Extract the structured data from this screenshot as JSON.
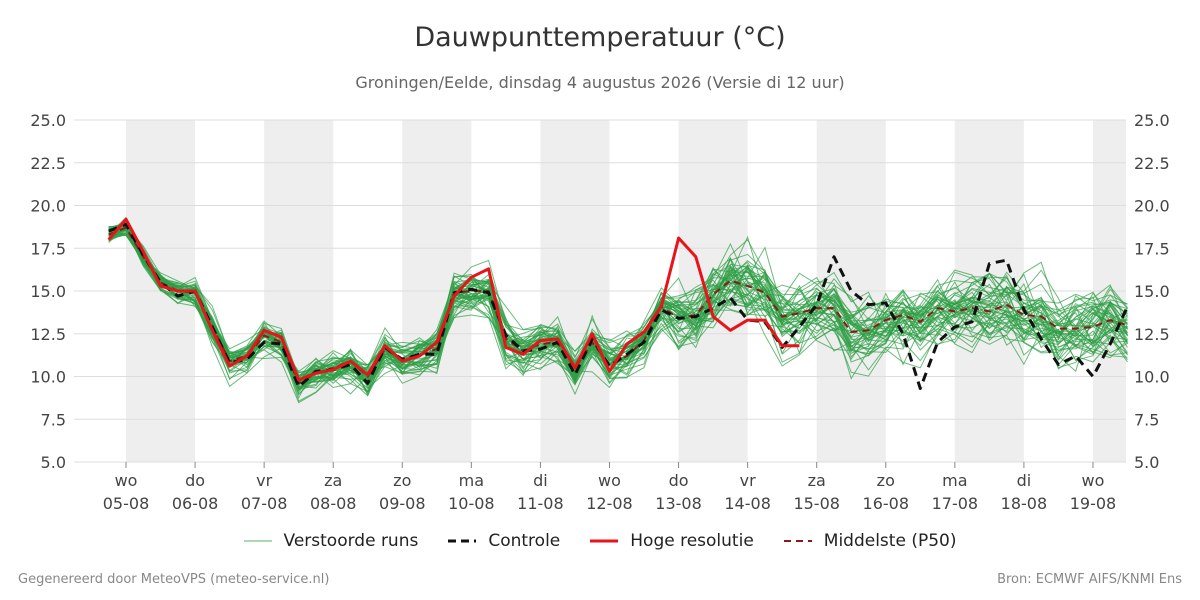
{
  "header": {
    "title": "Dauwpunttemperatuur (°C)",
    "subtitle": "Groningen/Eelde, dinsdag  4 augustus 2026 (Versie di 12 uur)"
  },
  "footer": {
    "generated_by": "Gegenereerd door MeteoVPS (meteo-service.nl)",
    "source": "Bron: ECMWF AIFS/KNMI Ens"
  },
  "colors": {
    "ensemble": "#2e9e44",
    "control": "#111111",
    "high_res": "#e8141b",
    "median": "#8b1a1a",
    "weekend_band": "#eeeeee",
    "grid": "#dddddd"
  },
  "legend": [
    {
      "key": "ensemble",
      "label": "Verstoorde runs",
      "style": "thin"
    },
    {
      "key": "control",
      "label": "Controle",
      "style": "dashed"
    },
    {
      "key": "high_res",
      "label": "Hoge resolutie",
      "style": "thick"
    },
    {
      "key": "median",
      "label": "Middelste (P50)",
      "style": "dashed-thin"
    }
  ],
  "chart_data": {
    "type": "line",
    "title": "Dauwpunttemperatuur (°C)",
    "ylim": [
      5.0,
      25.0
    ],
    "y_ticks": [
      "5.0",
      "7.5",
      "10.0",
      "12.5",
      "15.0",
      "17.5",
      "20.0",
      "22.5",
      "25.0"
    ],
    "xlim": [
      -0.25,
      14.5
    ],
    "x_ticks": [
      {
        "day": "wo",
        "date": "05-08"
      },
      {
        "day": "do",
        "date": "06-08"
      },
      {
        "day": "vr",
        "date": "07-08"
      },
      {
        "day": "za",
        "date": "08-08"
      },
      {
        "day": "zo",
        "date": "09-08"
      },
      {
        "day": "ma",
        "date": "10-08"
      },
      {
        "day": "di",
        "date": "11-08"
      },
      {
        "day": "wo",
        "date": "12-08"
      },
      {
        "day": "do",
        "date": "13-08"
      },
      {
        "day": "vr",
        "date": "14-08"
      },
      {
        "day": "za",
        "date": "15-08"
      },
      {
        "day": "zo",
        "date": "16-08"
      },
      {
        "day": "ma",
        "date": "17-08"
      },
      {
        "day": "di",
        "date": "18-08"
      },
      {
        "day": "wo",
        "date": "19-08"
      }
    ],
    "shaded_days": [
      0,
      2,
      4,
      6,
      8,
      10,
      12,
      14
    ],
    "series": [
      {
        "name": "Hoge resolutie",
        "x": [
          -0.25,
          0,
          0.25,
          0.5,
          0.75,
          1,
          1.25,
          1.5,
          1.75,
          2,
          2.25,
          2.5,
          2.75,
          3,
          3.25,
          3.5,
          3.75,
          4,
          4.25,
          4.5,
          4.75,
          5,
          5.25,
          5.5,
          5.75,
          6,
          6.25,
          6.5,
          6.75,
          7,
          7.25,
          7.5,
          7.75,
          8,
          8.25,
          8.5,
          8.75,
          9,
          9.25,
          9.5,
          9.75
        ],
        "y": [
          18.0,
          19.2,
          17.3,
          15.3,
          15.0,
          15.0,
          12.7,
          10.6,
          11.2,
          12.7,
          12.3,
          9.8,
          10.2,
          10.4,
          10.9,
          10.1,
          11.8,
          10.9,
          11.2,
          12.0,
          14.7,
          15.8,
          16.3,
          11.7,
          11.3,
          12.1,
          12.2,
          10.5,
          12.5,
          10.3,
          11.9,
          12.6,
          14.1,
          18.1,
          17.0,
          13.5,
          12.7,
          13.3,
          13.3,
          11.8,
          11.8
        ]
      },
      {
        "name": "Controle",
        "x": [
          -0.25,
          0,
          0.25,
          0.5,
          0.75,
          1,
          1.25,
          1.5,
          1.75,
          2,
          2.25,
          2.5,
          2.75,
          3,
          3.25,
          3.5,
          3.75,
          4,
          4.25,
          4.5,
          4.75,
          5,
          5.25,
          5.5,
          5.75,
          6,
          6.25,
          6.5,
          6.75,
          7,
          7.25,
          7.5,
          7.75,
          8,
          8.25,
          8.5,
          8.75,
          9,
          9.25,
          9.5,
          9.75,
          10,
          10.25,
          10.5,
          10.75,
          11,
          11.25,
          11.5,
          11.75,
          12,
          12.25,
          12.5,
          12.75,
          13,
          13.25,
          13.5,
          13.75,
          14,
          14.25,
          14.5
        ],
        "y": [
          18.5,
          18.9,
          17.1,
          15.5,
          14.7,
          15.0,
          12.9,
          10.8,
          11.0,
          12.0,
          11.9,
          9.4,
          10.3,
          10.4,
          10.7,
          9.6,
          11.7,
          11.0,
          11.3,
          11.3,
          14.9,
          15.1,
          14.9,
          12.4,
          11.5,
          11.6,
          12.0,
          10.1,
          12.2,
          10.6,
          11.3,
          12.0,
          13.9,
          13.4,
          13.5,
          14.0,
          14.6,
          13.3,
          13.2,
          11.7,
          12.9,
          14.2,
          17.0,
          15.0,
          14.2,
          14.3,
          12.5,
          9.3,
          12.0,
          12.9,
          13.2,
          16.6,
          16.8,
          13.9,
          12.2,
          10.7,
          11.2,
          10.0,
          11.9,
          14.1
        ]
      },
      {
        "name": "Middelste (P50)",
        "x": [
          -0.25,
          0,
          0.25,
          0.5,
          0.75,
          1,
          1.25,
          1.5,
          1.75,
          2,
          2.25,
          2.5,
          2.75,
          3,
          3.25,
          3.5,
          3.75,
          4,
          4.25,
          4.5,
          4.75,
          5,
          5.25,
          5.5,
          5.75,
          6,
          6.25,
          6.5,
          6.75,
          7,
          7.25,
          7.5,
          7.75,
          8,
          8.25,
          8.5,
          8.75,
          9,
          9.25,
          9.5,
          9.75,
          10,
          10.25,
          10.5,
          10.75,
          11,
          11.25,
          11.5,
          11.75,
          12,
          12.25,
          12.5,
          12.75,
          13,
          13.25,
          13.5,
          13.75,
          14,
          14.25,
          14.5
        ],
        "y": [
          18.3,
          18.7,
          17.0,
          15.5,
          15.0,
          14.9,
          12.9,
          10.9,
          11.2,
          12.4,
          12.0,
          9.6,
          10.2,
          10.5,
          10.9,
          10.0,
          11.6,
          11.0,
          11.3,
          11.6,
          14.9,
          15.0,
          15.0,
          12.2,
          11.5,
          11.9,
          12.0,
          10.5,
          12.0,
          10.7,
          11.2,
          12.1,
          14.1,
          13.4,
          13.6,
          14.8,
          15.6,
          15.3,
          14.9,
          13.5,
          13.7,
          14.0,
          14.0,
          12.6,
          12.7,
          13.3,
          13.6,
          13.2,
          14.0,
          13.8,
          14.0,
          13.8,
          14.2,
          13.6,
          13.5,
          12.8,
          12.8,
          12.9,
          13.3,
          13.0
        ]
      }
    ],
    "ensemble_members": 50
  }
}
